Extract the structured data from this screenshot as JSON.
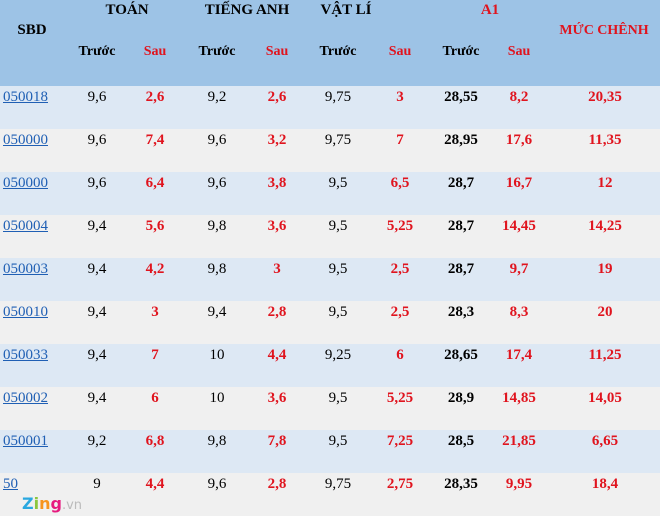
{
  "header": {
    "sbd": "SBD",
    "groups": [
      "TOÁN",
      "TIẾNG ANH",
      "VẬT LÍ",
      "A1"
    ],
    "diff": "MỨC CHÊNH",
    "before": "Trước",
    "after": "Sau"
  },
  "rows": [
    {
      "sbd": "050018",
      "v": [
        "9,6",
        "2,6",
        "9,2",
        "2,6",
        "9,75",
        "3",
        "28,55",
        "8,2",
        "20,35"
      ]
    },
    {
      "sbd": "050000",
      "v": [
        "9,6",
        "7,4",
        "9,6",
        "3,2",
        "9,75",
        "7",
        "28,95",
        "17,6",
        "11,35"
      ]
    },
    {
      "sbd": "050000",
      "v": [
        "9,6",
        "6,4",
        "9,6",
        "3,8",
        "9,5",
        "6,5",
        "28,7",
        "16,7",
        "12"
      ]
    },
    {
      "sbd": "050004",
      "v": [
        "9,4",
        "5,6",
        "9,8",
        "3,6",
        "9,5",
        "5,25",
        "28,7",
        "14,45",
        "14,25"
      ]
    },
    {
      "sbd": "050003",
      "v": [
        "9,4",
        "4,2",
        "9,8",
        "3",
        "9,5",
        "2,5",
        "28,7",
        "9,7",
        "19"
      ]
    },
    {
      "sbd": "050010",
      "v": [
        "9,4",
        "3",
        "9,4",
        "2,8",
        "9,5",
        "2,5",
        "28,3",
        "8,3",
        "20"
      ]
    },
    {
      "sbd": "050033",
      "v": [
        "9,4",
        "7",
        "10",
        "4,4",
        "9,25",
        "6",
        "28,65",
        "17,4",
        "11,25"
      ]
    },
    {
      "sbd": "050002",
      "v": [
        "9,4",
        "6",
        "10",
        "3,6",
        "9,5",
        "5,25",
        "28,9",
        "14,85",
        "14,05"
      ]
    },
    {
      "sbd": "050001",
      "v": [
        "9,2",
        "6,8",
        "9,8",
        "7,8",
        "9,5",
        "7,25",
        "28,5",
        "21,85",
        "6,65"
      ]
    },
    {
      "sbd": "50",
      "v": [
        "9",
        "4,4",
        "9,6",
        "2,8",
        "9,75",
        "2,75",
        "28,35",
        "9,95",
        "18,4"
      ]
    }
  ],
  "watermark": {
    "brand": "zing",
    ".vn": ".vn"
  },
  "colors": {
    "header": "#9dc3e6",
    "row_alt1": "#dde8f4",
    "row_alt2": "#f0f0f0",
    "red": "#e0141e",
    "link": "#1f5fb4"
  }
}
